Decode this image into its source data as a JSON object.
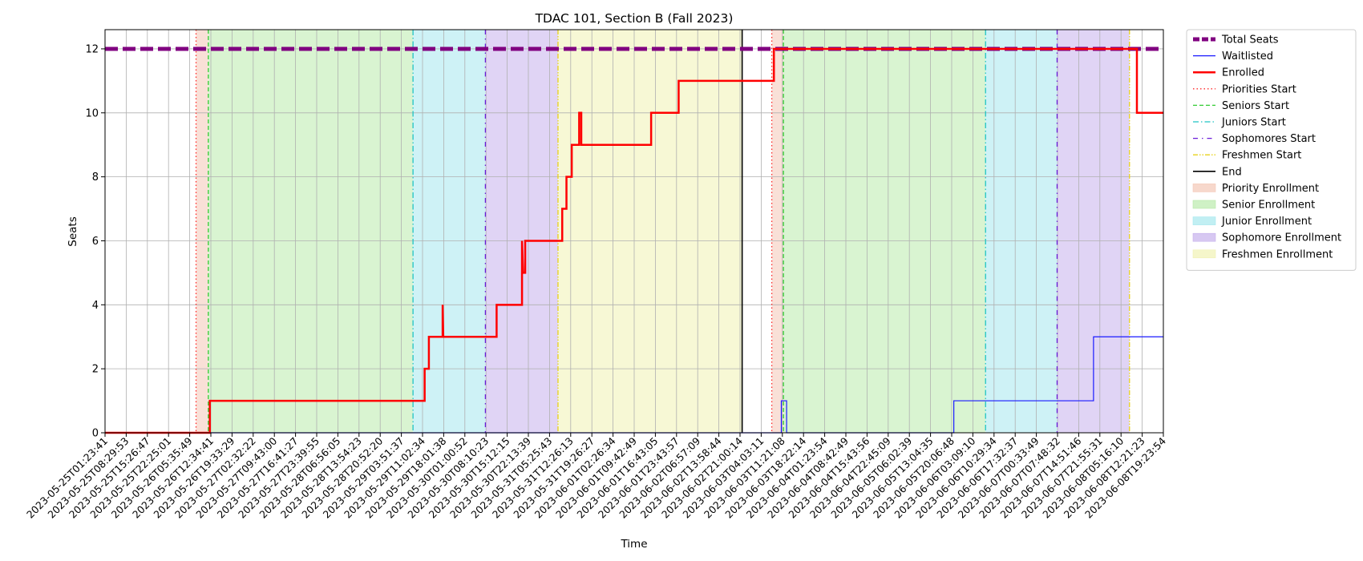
{
  "chart_data": {
    "type": "line",
    "title": "TDAC 101, Section B (Fall 2023)",
    "xlabel": "Time",
    "ylabel": "Seats",
    "ylim": [
      0,
      12.6
    ],
    "y_ticks": [
      0,
      2,
      4,
      6,
      8,
      10,
      12
    ],
    "grid": true,
    "legend_position": "outside-right",
    "x_ticks": [
      "2023-05-25T01:23:41",
      "2023-05-25T08:29:53",
      "2023-05-25T15:26:47",
      "2023-05-25T22:25:01",
      "2023-05-26T05:35:49",
      "2023-05-26T12:34:41",
      "2023-05-26T19:33:29",
      "2023-05-27T02:32:22",
      "2023-05-27T09:43:00",
      "2023-05-27T16:41:27",
      "2023-05-27T23:39:55",
      "2023-05-28T06:56:05",
      "2023-05-28T13:54:23",
      "2023-05-28T20:52:20",
      "2023-05-29T03:51:37",
      "2023-05-29T11:02:34",
      "2023-05-29T18:01:38",
      "2023-05-30T01:00:52",
      "2023-05-30T08:10:23",
      "2023-05-30T15:12:15",
      "2023-05-30T22:13:39",
      "2023-05-31T05:25:43",
      "2023-05-31T12:26:13",
      "2023-05-31T19:26:27",
      "2023-06-01T02:26:34",
      "2023-06-01T09:42:49",
      "2023-06-01T16:43:05",
      "2023-06-01T23:43:57",
      "2023-06-02T06:57:09",
      "2023-06-02T13:58:44",
      "2023-06-02T21:00:14",
      "2023-06-03T04:03:11",
      "2023-06-03T11:21:08",
      "2023-06-03T18:22:14",
      "2023-06-04T01:23:54",
      "2023-06-04T08:42:49",
      "2023-06-04T15:43:56",
      "2023-06-04T22:45:09",
      "2023-06-05T06:02:39",
      "2023-06-05T13:04:35",
      "2023-06-05T20:06:48",
      "2023-06-06T03:09:10",
      "2023-06-06T10:29:34",
      "2023-06-06T17:32:37",
      "2023-06-07T00:33:49",
      "2023-06-07T07:48:32",
      "2023-06-07T14:51:46",
      "2023-06-07T21:55:31",
      "2023-06-08T05:16:10",
      "2023-06-08T12:21:23",
      "2023-06-08T19:23:54"
    ],
    "x_range": [
      0,
      50
    ],
    "phases": [
      {
        "name": "Priority Enrollment",
        "color": "#f4c7b6",
        "opacity": 0.55,
        "start": 4.3,
        "end": 4.88
      },
      {
        "name": "Senior Enrollment",
        "color": "#b6eaa6",
        "opacity": 0.52,
        "start": 4.88,
        "end": 14.55
      },
      {
        "name": "Junior Enrollment",
        "color": "#a6e8ee",
        "opacity": 0.55,
        "start": 14.55,
        "end": 17.97
      },
      {
        "name": "Sophomore Enrollment",
        "color": "#c6b0ec",
        "opacity": 0.55,
        "start": 17.97,
        "end": 21.4
      },
      {
        "name": "Freshmen Enrollment",
        "color": "#f1f2b3",
        "opacity": 0.55,
        "start": 21.4,
        "end": 30.1
      },
      {
        "name": "Priority Enrollment",
        "color": "#f4c7b6",
        "opacity": 0.55,
        "start": 31.5,
        "end": 32.05
      },
      {
        "name": "Senior Enrollment",
        "color": "#b6eaa6",
        "opacity": 0.52,
        "start": 32.05,
        "end": 41.6
      },
      {
        "name": "Junior Enrollment",
        "color": "#a6e8ee",
        "opacity": 0.55,
        "start": 41.6,
        "end": 44.98
      },
      {
        "name": "Sophomore Enrollment",
        "color": "#c6b0ec",
        "opacity": 0.55,
        "start": 44.98,
        "end": 48.4
      }
    ],
    "markers": [
      {
        "name": "Priorities Start",
        "color": "#ff2a2a",
        "dash": "1.5,3",
        "x": [
          4.3,
          31.5
        ]
      },
      {
        "name": "Seniors Start",
        "color": "#33cc33",
        "dash": "5,3",
        "x": [
          4.88,
          32.05
        ]
      },
      {
        "name": "Juniors Start",
        "color": "#1fc4c4",
        "dash": "7,3,1.5,3",
        "x": [
          14.55,
          41.6
        ]
      },
      {
        "name": "Sophomores Start",
        "color": "#6a1ad9",
        "dash": "6,5,1.5,5",
        "x": [
          17.97,
          44.98
        ]
      },
      {
        "name": "Freshmen Start",
        "color": "#e8d21a",
        "dash": "6,2,1.5,2,1.5,2",
        "x": [
          21.4,
          48.4
        ]
      },
      {
        "name": "End",
        "color": "#000000",
        "dash": "",
        "x": [
          30.1
        ]
      }
    ],
    "series": [
      {
        "name": "Total Seats",
        "color": "#800080",
        "style": "dashed",
        "x": [
          0,
          50
        ],
        "values": [
          12,
          12
        ]
      },
      {
        "name": "Waitlisted",
        "color": "#1a1aff",
        "style": "solid",
        "x": [
          0,
          31.95,
          31.95,
          32.2,
          32.2,
          40.1,
          40.1,
          46.7,
          46.7,
          50
        ],
        "values": [
          0,
          0,
          1,
          1,
          0,
          0,
          1,
          1,
          3,
          3
        ]
      },
      {
        "name": "Enrolled",
        "color": "#ff0000",
        "style": "solid",
        "x": [
          0,
          4.95,
          4.95,
          15.1,
          15.1,
          15.3,
          15.3,
          15.6,
          15.6,
          15.95,
          15.95,
          15.98,
          16.0,
          18.5,
          18.5,
          19.7,
          19.7,
          19.75,
          19.78,
          19.85,
          19.85,
          20.3,
          20.3,
          21.6,
          21.6,
          21.8,
          21.8,
          22.05,
          22.05,
          22.4,
          22.4,
          22.45,
          22.45,
          22.5,
          22.5,
          23.0,
          23.0,
          25.8,
          25.8,
          27.1,
          27.1,
          31.6,
          31.6,
          48.75,
          48.75,
          50
        ],
        "values": [
          0,
          0,
          1,
          1,
          2,
          2,
          3,
          3,
          3,
          3,
          4,
          3,
          3,
          3,
          4,
          4,
          6,
          5,
          5,
          5,
          6,
          6,
          6,
          6,
          7,
          7,
          8,
          8,
          9,
          9,
          10,
          10,
          10,
          10,
          9,
          9,
          9,
          9,
          10,
          10,
          11,
          11,
          12,
          12,
          10,
          10
        ]
      }
    ],
    "legend": [
      {
        "label": "Total Seats",
        "kind": "line",
        "color": "#800080",
        "width": 5,
        "dash": "8,3"
      },
      {
        "label": "Waitlisted",
        "kind": "line",
        "color": "#1a1aff",
        "width": 1.2,
        "dash": ""
      },
      {
        "label": "Enrolled",
        "kind": "line",
        "color": "#ff0000",
        "width": 2.5,
        "dash": ""
      },
      {
        "label": "Priorities Start",
        "kind": "line",
        "color": "#ff2a2a",
        "width": 1.3,
        "dash": "1.5,3"
      },
      {
        "label": "Seniors Start",
        "kind": "line",
        "color": "#33cc33",
        "width": 1.3,
        "dash": "5,3"
      },
      {
        "label": "Juniors Start",
        "kind": "line",
        "color": "#1fc4c4",
        "width": 1.3,
        "dash": "7,3,1.5,3"
      },
      {
        "label": "Sophomores Start",
        "kind": "line",
        "color": "#6a1ad9",
        "width": 1.3,
        "dash": "6,5,1.5,5"
      },
      {
        "label": "Freshmen Start",
        "kind": "line",
        "color": "#e8d21a",
        "width": 1.3,
        "dash": "6,2,1.5,2,1.5,2"
      },
      {
        "label": "End",
        "kind": "line",
        "color": "#000000",
        "width": 1.6,
        "dash": ""
      },
      {
        "label": "Priority Enrollment",
        "kind": "patch",
        "color": "#f4c7b6",
        "opacity": 0.7
      },
      {
        "label": "Senior Enrollment",
        "kind": "patch",
        "color": "#b6eaa6",
        "opacity": 0.65
      },
      {
        "label": "Junior Enrollment",
        "kind": "patch",
        "color": "#a6e8ee",
        "opacity": 0.7
      },
      {
        "label": "Sophomore Enrollment",
        "kind": "patch",
        "color": "#c6b0ec",
        "opacity": 0.7
      },
      {
        "label": "Freshmen Enrollment",
        "kind": "patch",
        "color": "#f1f2b3",
        "opacity": 0.7
      }
    ]
  }
}
